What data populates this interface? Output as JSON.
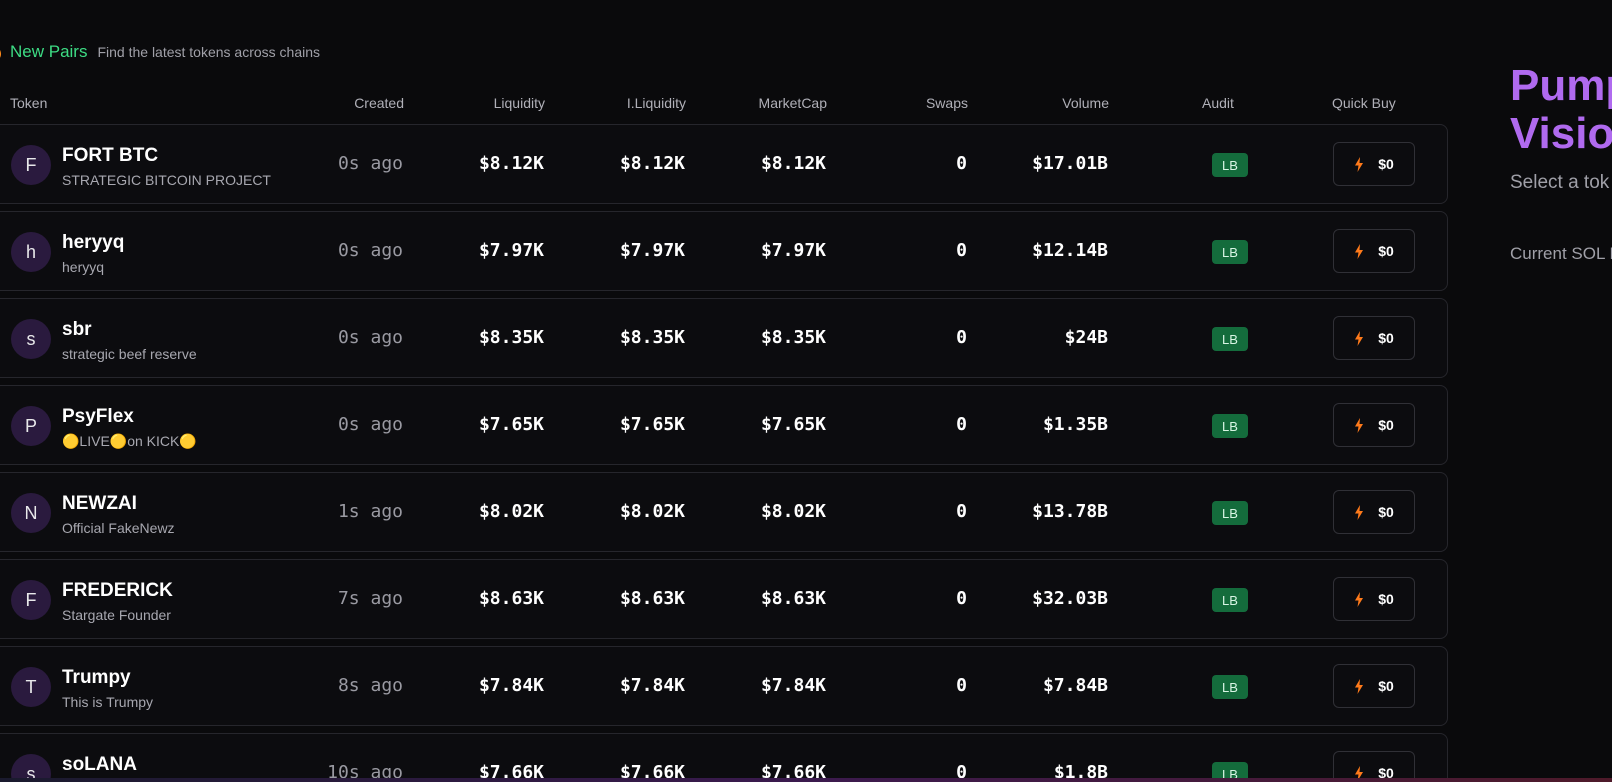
{
  "header": {
    "title": "New Pairs",
    "subtitle": "Find the latest tokens across chains",
    "icon": "flame-icon"
  },
  "columns": {
    "token": "Token",
    "created": "Created",
    "liquidity": "Liquidity",
    "iliquidity": "I.Liquidity",
    "marketcap": "MarketCap",
    "swaps": "Swaps",
    "volume": "Volume",
    "audit": "Audit",
    "quickbuy": "Quick Buy"
  },
  "rows": [
    {
      "initial": "F",
      "name": "FORT BTC",
      "desc": "STRATEGIC BITCOIN PROJECT",
      "created": "0s ago",
      "liquidity": "$8.12K",
      "iliquidity": "$8.12K",
      "marketcap": "$8.12K",
      "swaps": "0",
      "volume": "$17.01B",
      "audit": "LB",
      "buy": "$0"
    },
    {
      "initial": "h",
      "name": "heryyq",
      "desc": "heryyq",
      "created": "0s ago",
      "liquidity": "$7.97K",
      "iliquidity": "$7.97K",
      "marketcap": "$7.97K",
      "swaps": "0",
      "volume": "$12.14B",
      "audit": "LB",
      "buy": "$0"
    },
    {
      "initial": "s",
      "name": "sbr",
      "desc": "strategic beef reserve",
      "created": "0s ago",
      "liquidity": "$8.35K",
      "iliquidity": "$8.35K",
      "marketcap": "$8.35K",
      "swaps": "0",
      "volume": "$24B",
      "audit": "LB",
      "buy": "$0"
    },
    {
      "initial": "P",
      "name": "PsyFlex",
      "desc": "🟡LIVE🟡on KICK🟡",
      "created": "0s ago",
      "liquidity": "$7.65K",
      "iliquidity": "$7.65K",
      "marketcap": "$7.65K",
      "swaps": "0",
      "volume": "$1.35B",
      "audit": "LB",
      "buy": "$0"
    },
    {
      "initial": "N",
      "name": "NEWZAI",
      "desc": "Official FakeNewz",
      "created": "1s ago",
      "liquidity": "$8.02K",
      "iliquidity": "$8.02K",
      "marketcap": "$8.02K",
      "swaps": "0",
      "volume": "$13.78B",
      "audit": "LB",
      "buy": "$0"
    },
    {
      "initial": "F",
      "name": "FREDERICK",
      "desc": "Stargate Founder",
      "created": "7s ago",
      "liquidity": "$8.63K",
      "iliquidity": "$8.63K",
      "marketcap": "$8.63K",
      "swaps": "0",
      "volume": "$32.03B",
      "audit": "LB",
      "buy": "$0"
    },
    {
      "initial": "T",
      "name": "Trumpy",
      "desc": "This is Trumpy",
      "created": "8s ago",
      "liquidity": "$7.84K",
      "iliquidity": "$7.84K",
      "marketcap": "$7.84K",
      "swaps": "0",
      "volume": "$7.84B",
      "audit": "LB",
      "buy": "$0"
    },
    {
      "initial": "s",
      "name": "soLANA",
      "desc": "",
      "created": "10s ago",
      "liquidity": "$7.66K",
      "iliquidity": "$7.66K",
      "marketcap": "$7.66K",
      "swaps": "0",
      "volume": "$1.8B",
      "audit": "LB",
      "buy": "$0"
    }
  ],
  "side": {
    "title_line1": "Pump",
    "title_line2": "Visio",
    "text": "Select a tok analytics",
    "sol": "Current SOL P"
  },
  "colors": {
    "accent_green": "#3ddc84",
    "audit_green": "#146c3c",
    "purple": "#b06aef",
    "bolt_orange": "#ff7a1a"
  }
}
